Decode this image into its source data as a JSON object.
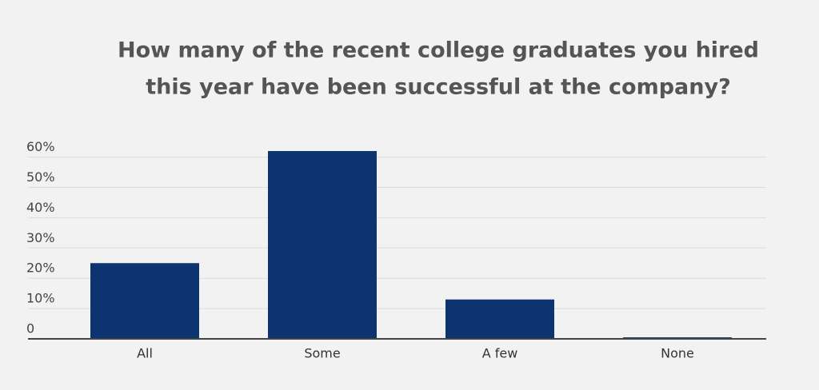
{
  "chart_data": {
    "type": "bar",
    "title": [
      "How many of the recent college graduates you hired",
      "this year have been successful at the company?"
    ],
    "categories": [
      "All",
      "Some",
      "A few",
      "None"
    ],
    "values": [
      25,
      62,
      13,
      0.5
    ],
    "color": "#0b3470",
    "ylim": [
      0,
      62
    ],
    "yticks": [
      0,
      {
        "value": 10,
        "label": "10%"
      },
      {
        "value": 20,
        "label": "20%"
      },
      {
        "value": 30,
        "label": "30%"
      },
      {
        "value": 40,
        "label": "40%"
      },
      {
        "value": 50,
        "label": "50%"
      },
      {
        "value": 60,
        "label": "60%"
      }
    ],
    "grid": true
  }
}
